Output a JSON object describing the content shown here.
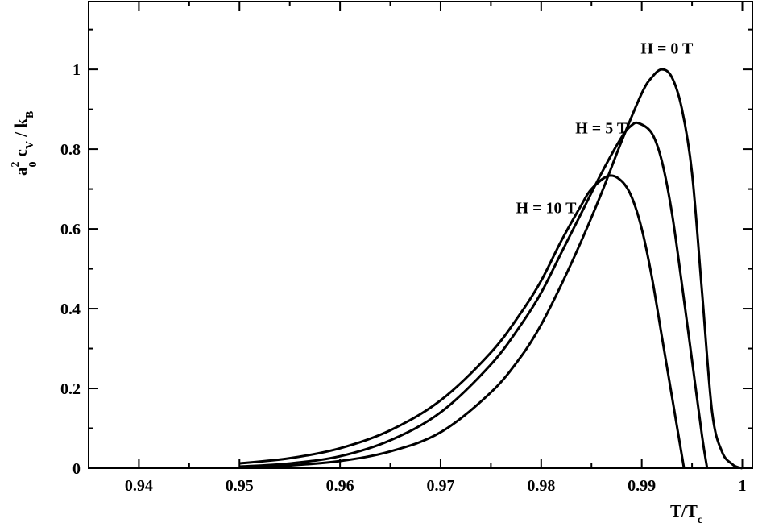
{
  "chart_data": {
    "type": "line",
    "xlabel": "T/T",
    "xlabel_sub": "c",
    "ylabel_parts": {
      "a": "a",
      "a_sup": "2",
      "a_sub": "0",
      "c": "c",
      "c_sub": "V",
      "slash": " / k",
      "k_sub": "B"
    },
    "xlim": [
      0.935,
      1.001
    ],
    "ylim": [
      0,
      1.17
    ],
    "xticks": [
      0.94,
      0.95,
      0.96,
      0.97,
      0.98,
      0.99,
      1
    ],
    "xtick_labels": [
      "0.94",
      "0.95",
      "0.96",
      "0.97",
      "0.98",
      "0.99",
      "1"
    ],
    "yticks": [
      0,
      0.2,
      0.4,
      0.6,
      0.8,
      1
    ],
    "ytick_labels": [
      "0",
      "0.2",
      "0.4",
      "0.6",
      "0.8",
      "1"
    ],
    "grid": false,
    "legend": "none",
    "series": [
      {
        "name": "H = 0 T",
        "x": [
          0.95,
          0.955,
          0.96,
          0.965,
          0.97,
          0.975,
          0.978,
          0.98,
          0.982,
          0.984,
          0.986,
          0.988,
          0.99,
          0.991,
          0.992,
          0.993,
          0.994,
          0.995,
          0.996,
          0.997,
          0.998,
          0.999,
          0.9995,
          1.0
        ],
        "values": [
          0.002,
          0.007,
          0.018,
          0.042,
          0.09,
          0.19,
          0.28,
          0.36,
          0.46,
          0.57,
          0.69,
          0.82,
          0.94,
          0.98,
          1.0,
          0.98,
          0.9,
          0.74,
          0.44,
          0.14,
          0.04,
          0.01,
          0.003,
          0.0
        ]
      },
      {
        "name": "H = 5 T",
        "x": [
          0.95,
          0.955,
          0.96,
          0.965,
          0.97,
          0.975,
          0.978,
          0.98,
          0.982,
          0.984,
          0.986,
          0.988,
          0.989,
          0.9897,
          0.991,
          0.992,
          0.993,
          0.994,
          0.995,
          0.996,
          0.9965
        ],
        "values": [
          0.004,
          0.012,
          0.03,
          0.07,
          0.14,
          0.26,
          0.36,
          0.44,
          0.54,
          0.64,
          0.74,
          0.83,
          0.86,
          0.865,
          0.84,
          0.77,
          0.64,
          0.46,
          0.27,
          0.08,
          0.0
        ]
      },
      {
        "name": "H = 10 T",
        "x": [
          0.95,
          0.955,
          0.96,
          0.965,
          0.97,
          0.975,
          0.978,
          0.98,
          0.982,
          0.984,
          0.985,
          0.9867,
          0.988,
          0.989,
          0.99,
          0.991,
          0.992,
          0.993,
          0.994,
          0.9942
        ],
        "values": [
          0.012,
          0.025,
          0.05,
          0.095,
          0.17,
          0.29,
          0.39,
          0.47,
          0.57,
          0.66,
          0.7,
          0.733,
          0.72,
          0.68,
          0.6,
          0.48,
          0.33,
          0.18,
          0.03,
          0.0
        ]
      }
    ],
    "annotations": [
      {
        "text": "H = 0 T",
        "x": 0.9925,
        "y": 1.04
      },
      {
        "text": "H = 5 T",
        "x": 0.986,
        "y": 0.84
      },
      {
        "text": "H = 10 T",
        "x": 0.9805,
        "y": 0.64
      }
    ]
  }
}
